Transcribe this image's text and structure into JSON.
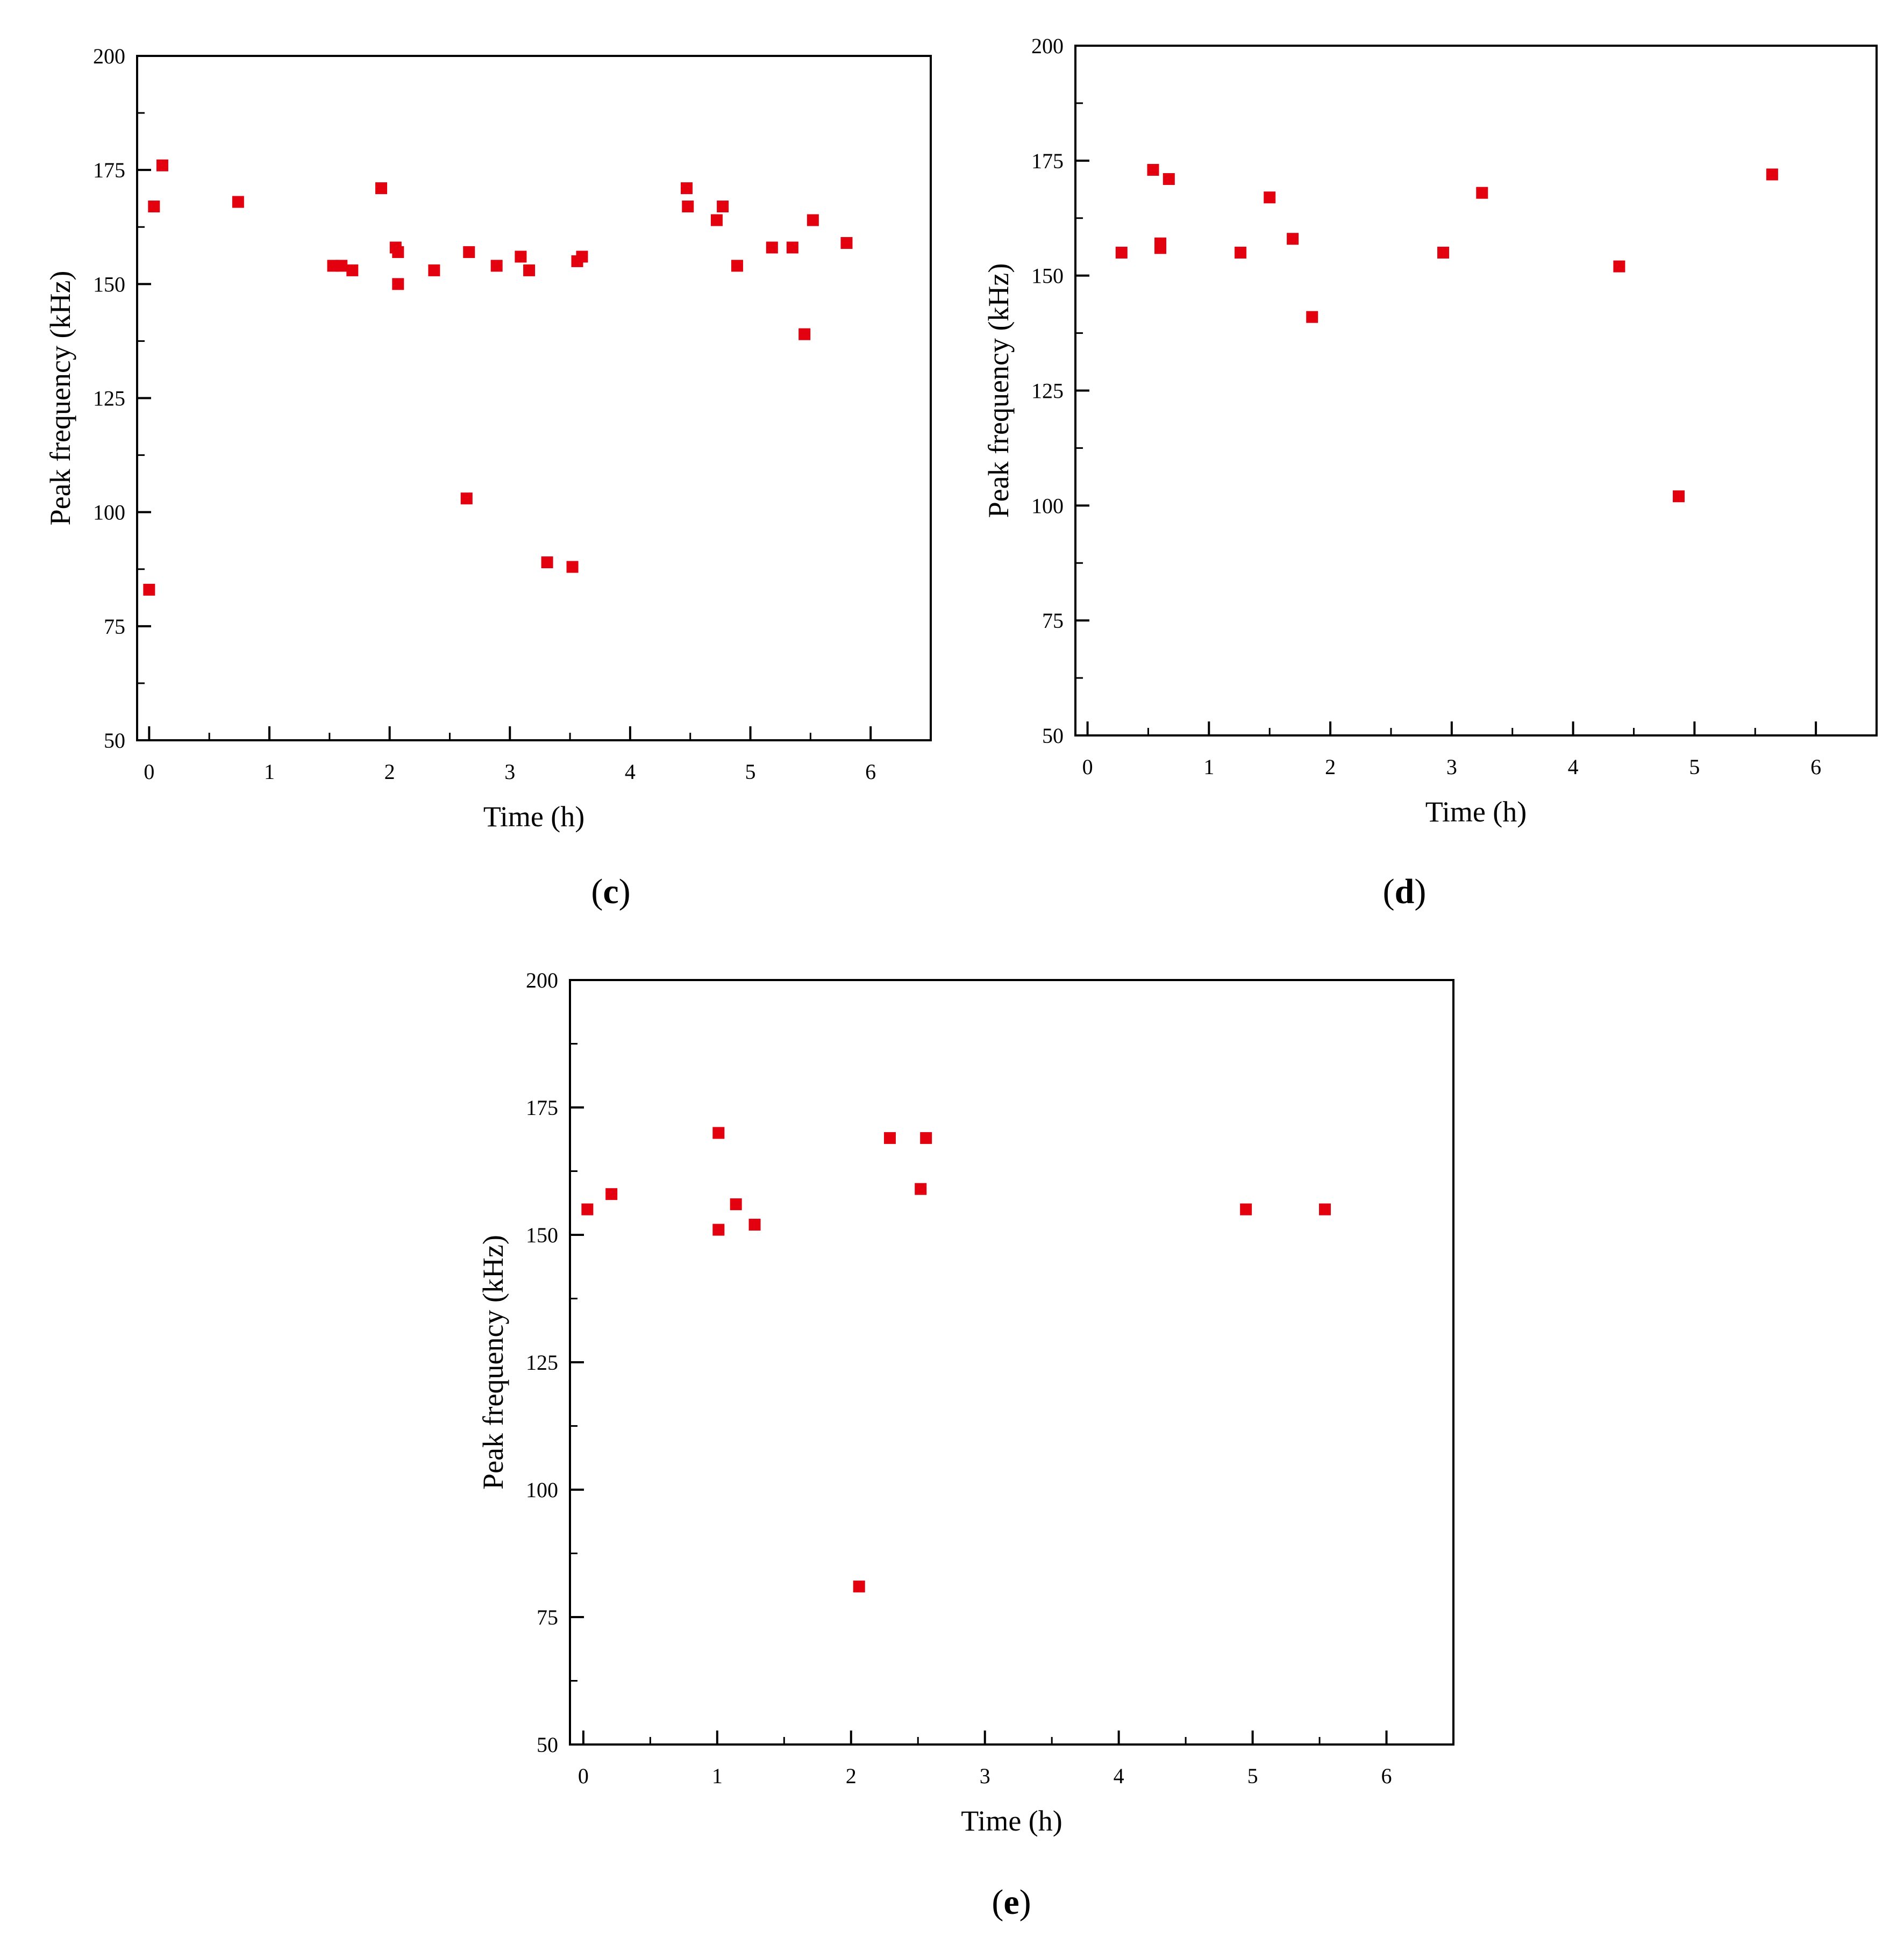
{
  "marker_color": "#e3000f",
  "chart_data": [
    {
      "type": "scatter",
      "label": "c",
      "xlabel": "Time (h)",
      "ylabel": "Peak frequency (kHz)",
      "xlim": [
        -0.1,
        6.5
      ],
      "ylim": [
        50,
        200
      ],
      "xticks": [
        0,
        1,
        2,
        3,
        4,
        5,
        6
      ],
      "yticks": [
        50,
        75,
        100,
        125,
        150,
        175,
        200
      ],
      "grid": false,
      "points": [
        [
          0.0,
          83
        ],
        [
          0.04,
          167
        ],
        [
          0.11,
          176
        ],
        [
          0.74,
          168
        ],
        [
          1.53,
          154
        ],
        [
          1.6,
          154
        ],
        [
          1.69,
          153
        ],
        [
          1.93,
          171
        ],
        [
          2.05,
          158
        ],
        [
          2.07,
          157
        ],
        [
          2.07,
          150
        ],
        [
          2.37,
          153
        ],
        [
          2.64,
          103
        ],
        [
          2.66,
          157
        ],
        [
          2.89,
          154
        ],
        [
          3.09,
          156
        ],
        [
          3.16,
          153
        ],
        [
          3.31,
          89
        ],
        [
          3.52,
          88
        ],
        [
          3.56,
          155
        ],
        [
          3.6,
          156
        ],
        [
          4.47,
          171
        ],
        [
          4.48,
          167
        ],
        [
          4.72,
          164
        ],
        [
          4.77,
          167
        ],
        [
          4.89,
          154
        ],
        [
          5.18,
          158
        ],
        [
          5.35,
          158
        ],
        [
          5.45,
          139
        ],
        [
          5.52,
          164
        ],
        [
          5.8,
          159
        ]
      ]
    },
    {
      "type": "scatter",
      "label": "d",
      "xlabel": "Time (h)",
      "ylabel": "Peak frequency (kHz)",
      "xlim": [
        -0.1,
        6.5
      ],
      "ylim": [
        50,
        200
      ],
      "xticks": [
        0,
        1,
        2,
        3,
        4,
        5,
        6
      ],
      "yticks": [
        50,
        75,
        100,
        125,
        150,
        175,
        200
      ],
      "grid": false,
      "points": [
        [
          0.28,
          155
        ],
        [
          0.54,
          173
        ],
        [
          0.6,
          157
        ],
        [
          0.6,
          156
        ],
        [
          0.67,
          171
        ],
        [
          1.26,
          155
        ],
        [
          1.5,
          167
        ],
        [
          1.69,
          158
        ],
        [
          1.85,
          141
        ],
        [
          2.93,
          155
        ],
        [
          3.25,
          168
        ],
        [
          4.38,
          152
        ],
        [
          4.87,
          102
        ],
        [
          5.64,
          172
        ]
      ]
    },
    {
      "type": "scatter",
      "label": "e",
      "xlabel": "Time (h)",
      "ylabel": "Peak frequency (kHz)",
      "xlim": [
        -0.1,
        6.5
      ],
      "ylim": [
        50,
        200
      ],
      "xticks": [
        0,
        1,
        2,
        3,
        4,
        5,
        6
      ],
      "yticks": [
        50,
        75,
        100,
        125,
        150,
        175,
        200
      ],
      "grid": false,
      "points": [
        [
          0.03,
          155
        ],
        [
          0.21,
          158
        ],
        [
          1.01,
          170
        ],
        [
          1.01,
          151
        ],
        [
          1.14,
          156
        ],
        [
          1.28,
          152
        ],
        [
          2.06,
          81
        ],
        [
          2.29,
          169
        ],
        [
          2.52,
          159
        ],
        [
          2.56,
          169
        ],
        [
          4.95,
          155
        ],
        [
          5.54,
          155
        ]
      ]
    }
  ]
}
